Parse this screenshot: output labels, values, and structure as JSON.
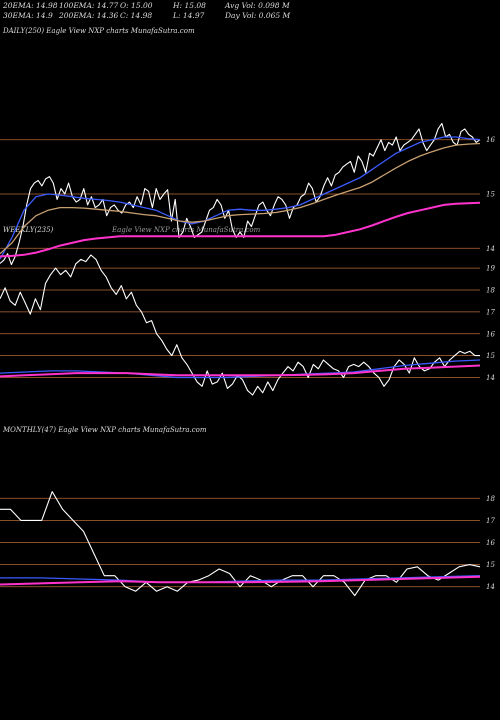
{
  "header": {
    "row1": [
      "20EMA: 14.98",
      "100EMA: 14.77",
      "O: 15.00",
      "H: 15.08",
      "Avg Vol: 0.098 M"
    ],
    "row2": [
      "30EMA: 14.9",
      "200EMA: 14.36",
      "C: 14.98",
      "L: 14.97",
      "Day Vol: 0.065 M"
    ]
  },
  "panels": [
    {
      "id": "daily",
      "label": "DAILY(250) Eagle View NXP charts MunafaSutra.com"
    },
    {
      "id": "weekly",
      "label": "WEEKLY(235)",
      "label2": "Eagle View NXP charts MunafaSutra.com"
    },
    {
      "id": "monthly",
      "label": "MONTHLY(47) Eagle View NXP charts MunafaSutra.com"
    }
  ],
  "colors": {
    "background": "#000000",
    "price": "#ffffff",
    "ema_blue": "#3b5bff",
    "ema_magenta": "#ff33cc",
    "gridline": "#b86a3a"
  },
  "chart_data": [
    {
      "type": "line",
      "panel": "daily",
      "y_ticks": [
        16,
        15,
        14
      ],
      "ylim": [
        13.6,
        16.4
      ],
      "series": [
        {
          "role": "price",
          "color": "#ffffff",
          "values": [
            13.72,
            13.78,
            13.9,
            13.7,
            13.85,
            14.1,
            14.4,
            14.8,
            15.1,
            15.2,
            15.25,
            15.15,
            15.28,
            15.32,
            15.2,
            14.9,
            15.1,
            15.0,
            15.2,
            14.95,
            14.85,
            14.9,
            15.1,
            14.8,
            14.95,
            14.75,
            14.8,
            14.9,
            14.6,
            14.75,
            14.8,
            14.7,
            14.65,
            14.8,
            14.85,
            14.75,
            14.95,
            14.8,
            15.1,
            15.05,
            14.75,
            15.1,
            14.9,
            15.0,
            15.08,
            14.5,
            14.9,
            14.2,
            14.3,
            14.55,
            14.4,
            14.2,
            14.25,
            14.3,
            14.5,
            14.7,
            14.75,
            14.9,
            14.8,
            14.55,
            14.7,
            14.35,
            14.2,
            14.3,
            14.2,
            14.5,
            14.4,
            14.6,
            14.8,
            14.85,
            14.7,
            14.6,
            14.8,
            14.95,
            14.9,
            14.8,
            14.55,
            14.75,
            14.8,
            14.95,
            15.0,
            15.2,
            15.1,
            14.85,
            14.95,
            15.15,
            15.3,
            15.15,
            15.35,
            15.4,
            15.5,
            15.55,
            15.6,
            15.4,
            15.7,
            15.6,
            15.4,
            15.75,
            15.7,
            15.85,
            16.0,
            15.8,
            15.95,
            15.9,
            16.05,
            15.8,
            15.9,
            15.95,
            16.0,
            16.1,
            16.2,
            15.95,
            15.8,
            15.9,
            16.0,
            16.2,
            16.3,
            16.05,
            16.1,
            15.95,
            15.9,
            16.15,
            16.2,
            16.1,
            16.05,
            15.95,
            16.0
          ]
        },
        {
          "role": "ema-fast",
          "color": "#3b5bff",
          "values": [
            13.8,
            14.2,
            14.7,
            14.95,
            15.0,
            14.98,
            14.95,
            14.92,
            14.9,
            14.88,
            14.85,
            14.8,
            14.75,
            14.7,
            14.6,
            14.5,
            14.45,
            14.5,
            14.6,
            14.7,
            14.72,
            14.7,
            14.7,
            14.72,
            14.75,
            14.8,
            14.9,
            15.0,
            15.1,
            15.2,
            15.3,
            15.45,
            15.6,
            15.75,
            15.85,
            15.95,
            16.0,
            16.05,
            16.05,
            16.02,
            16.0
          ]
        },
        {
          "role": "ema-mid",
          "color": "#c8a070",
          "values": [
            13.9,
            14.1,
            14.4,
            14.6,
            14.7,
            14.75,
            14.75,
            14.74,
            14.72,
            14.7,
            14.68,
            14.65,
            14.62,
            14.6,
            14.55,
            14.5,
            14.48,
            14.5,
            14.55,
            14.6,
            14.62,
            14.63,
            14.64,
            14.66,
            14.7,
            14.75,
            14.82,
            14.9,
            14.98,
            15.05,
            15.12,
            15.22,
            15.35,
            15.48,
            15.6,
            15.7,
            15.78,
            15.85,
            15.9,
            15.92,
            15.93
          ]
        },
        {
          "role": "ema-slow",
          "color": "#ff33cc",
          "values": [
            13.85,
            13.86,
            13.88,
            13.92,
            13.98,
            14.05,
            14.1,
            14.15,
            14.18,
            14.2,
            14.22,
            14.22,
            14.22,
            14.22,
            14.22,
            14.22,
            14.22,
            14.22,
            14.22,
            14.22,
            14.22,
            14.22,
            14.22,
            14.22,
            14.22,
            14.22,
            14.22,
            14.22,
            14.25,
            14.3,
            14.35,
            14.42,
            14.5,
            14.58,
            14.65,
            14.7,
            14.75,
            14.8,
            14.82,
            14.83,
            14.84
          ]
        }
      ]
    },
    {
      "type": "line",
      "panel": "weekly",
      "y_ticks": [
        19,
        18,
        17,
        16,
        15,
        14
      ],
      "ylim": [
        13.2,
        19.6
      ],
      "series": [
        {
          "role": "price",
          "color": "#ffffff",
          "values": [
            17.6,
            18.1,
            17.5,
            17.3,
            17.9,
            17.4,
            16.9,
            17.6,
            17.1,
            18.3,
            18.7,
            19.0,
            18.7,
            18.9,
            18.6,
            19.2,
            19.4,
            19.3,
            19.6,
            19.4,
            18.9,
            18.6,
            18.1,
            17.8,
            18.2,
            17.6,
            17.9,
            17.3,
            17.0,
            16.5,
            16.6,
            16.0,
            15.7,
            15.3,
            15.0,
            15.5,
            14.9,
            14.6,
            14.2,
            13.8,
            13.6,
            14.3,
            13.7,
            13.8,
            14.2,
            13.5,
            13.7,
            14.1,
            13.9,
            13.4,
            13.2,
            13.6,
            13.3,
            13.8,
            13.4,
            13.9,
            14.2,
            14.5,
            14.3,
            14.7,
            14.5,
            14.0,
            14.6,
            14.4,
            14.8,
            14.6,
            14.4,
            14.3,
            14.0,
            14.5,
            14.6,
            14.5,
            14.7,
            14.5,
            14.2,
            14.0,
            13.6,
            13.9,
            14.5,
            14.8,
            14.6,
            14.2,
            14.9,
            14.5,
            14.3,
            14.4,
            14.7,
            14.9,
            14.5,
            14.8,
            15.0,
            15.2,
            15.1,
            15.2,
            15.0,
            15.0
          ]
        },
        {
          "role": "ema-blue",
          "color": "#3b5bff",
          "values": [
            14.2,
            14.25,
            14.3,
            14.3,
            14.25,
            14.2,
            14.1,
            14.0,
            14.0,
            14.0,
            14.05,
            14.1,
            14.15,
            14.2,
            14.25,
            14.4,
            14.55,
            14.65,
            14.75,
            14.8
          ]
        },
        {
          "role": "ema-magenta",
          "color": "#ff33cc",
          "values": [
            14.05,
            14.1,
            14.15,
            14.2,
            14.2,
            14.2,
            14.15,
            14.1,
            14.1,
            14.1,
            14.1,
            14.1,
            14.12,
            14.15,
            14.2,
            14.3,
            14.4,
            14.45,
            14.5,
            14.55
          ]
        }
      ]
    },
    {
      "type": "line",
      "panel": "monthly",
      "y_ticks": [
        18,
        17,
        16,
        15,
        14
      ],
      "ylim": [
        13.4,
        18.6
      ],
      "series": [
        {
          "role": "price",
          "color": "#ffffff",
          "values": [
            17.5,
            17.5,
            17.0,
            17.0,
            17.0,
            18.3,
            17.5,
            17.0,
            16.5,
            15.5,
            14.5,
            14.5,
            14.0,
            13.8,
            14.2,
            13.8,
            14.0,
            13.8,
            14.2,
            14.3,
            14.5,
            14.8,
            14.6,
            14.0,
            14.5,
            14.3,
            14.0,
            14.3,
            14.5,
            14.5,
            14.0,
            14.5,
            14.5,
            14.2,
            13.6,
            14.3,
            14.5,
            14.5,
            14.2,
            14.8,
            14.9,
            14.5,
            14.3,
            14.6,
            14.9,
            15.0,
            14.9
          ]
        },
        {
          "role": "ema-blue",
          "color": "#3b5bff",
          "values": [
            14.4,
            14.4,
            14.35,
            14.3,
            14.2,
            14.2,
            14.25,
            14.3,
            14.3,
            14.35,
            14.4,
            14.45,
            14.5
          ]
        },
        {
          "role": "ema-magenta",
          "color": "#ff33cc",
          "values": [
            14.1,
            14.15,
            14.2,
            14.25,
            14.2,
            14.2,
            14.2,
            14.22,
            14.25,
            14.3,
            14.35,
            14.4,
            14.45
          ]
        }
      ]
    }
  ]
}
